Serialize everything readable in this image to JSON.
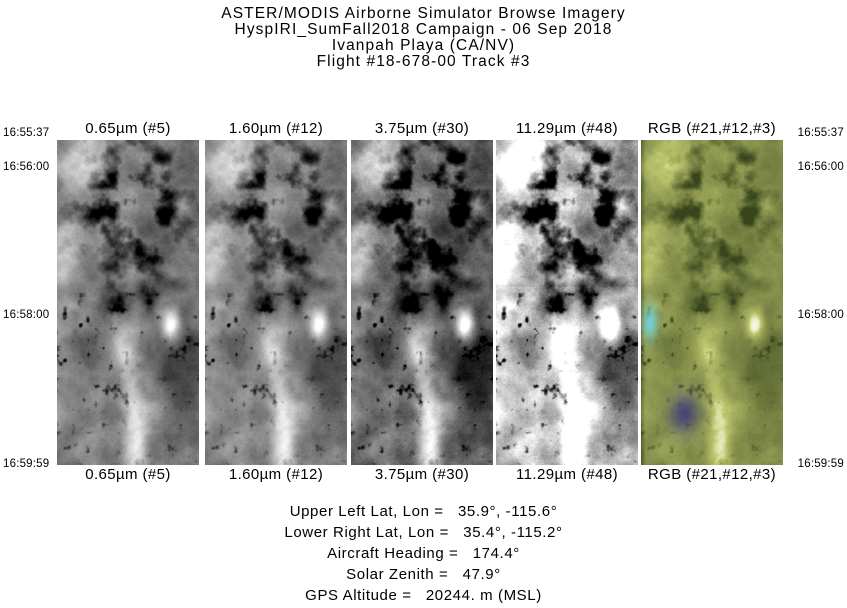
{
  "page": {
    "background_color": "#ffffff",
    "text_color": "#000000"
  },
  "page_title": {
    "line1": "ASTER/MODIS Airborne Simulator Browse Imagery",
    "line2": "HyspIRI_SumFall2018 Campaign - 06 Sep 2018",
    "line3": "Ivanpah Playa (CA/NV)",
    "line4": "Flight #18-678-00 Track #3"
  },
  "strips": [
    {
      "label": "0.65µm (#5)",
      "type": "grayscale"
    },
    {
      "label": "1.60µm (#12)",
      "type": "grayscale"
    },
    {
      "label": "3.75µm (#30)",
      "type": "grayscale"
    },
    {
      "label": "11.29µm (#48)",
      "type": "grayscale"
    },
    {
      "label": "RGB (#21,#12,#3)",
      "type": "truecolor"
    }
  ],
  "timestamps": {
    "left": [
      "16:55:37",
      "16:56:00",
      "16:58:00",
      "16:59:59"
    ],
    "right": [
      "16:55:37",
      "16:56:00",
      "16:58:00",
      "16:59:59"
    ]
  },
  "metadata": {
    "separator": " =   ",
    "items": [
      {
        "label": "Upper Left Lat, Lon",
        "value": "35.9°, -115.6°"
      },
      {
        "label": "Lower Right Lat, Lon",
        "value": "35.4°, -115.2°"
      },
      {
        "label": "Aircraft Heading",
        "value": "174.4°"
      },
      {
        "label": "Solar Zenith",
        "value": "47.9°"
      },
      {
        "label": "GPS Altitude",
        "value": "20244. m (MSL)"
      }
    ]
  }
}
